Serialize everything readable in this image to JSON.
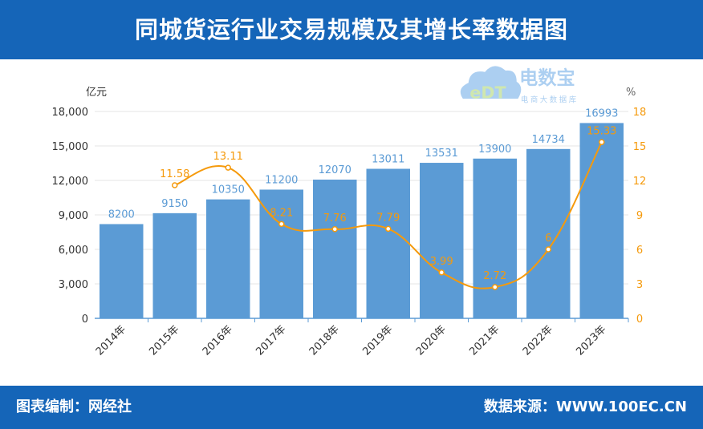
{
  "title": "同城货运行业交易规模及其增长率数据图",
  "footer": {
    "left": "图表编制：网经社",
    "right": "数据来源：WWW.100EC.CN"
  },
  "logo": {
    "name": "电数宝",
    "sub": "电商大数据库",
    "mark": "eDT"
  },
  "colors": {
    "header": "#1565b8",
    "bar": "#5b9bd5",
    "line": "#f59a0c",
    "bar_label": "#5b9bd5"
  },
  "chart_data": {
    "type": "bar+line",
    "categories": [
      "2014年",
      "2015年",
      "2016年",
      "2017年",
      "2018年",
      "2019年",
      "2020年",
      "2021年",
      "2022年",
      "2023年"
    ],
    "series": [
      {
        "type": "bar",
        "axis": "left",
        "values": [
          8200,
          9150,
          10350,
          11200,
          12070,
          13011,
          13531,
          13900,
          14734,
          16993
        ]
      },
      {
        "type": "line",
        "axis": "right",
        "smooth": true,
        "values": [
          null,
          11.58,
          13.11,
          8.21,
          7.76,
          7.79,
          3.99,
          2.72,
          6,
          15.33
        ]
      }
    ],
    "ylabel_left": "亿元",
    "ylabel_right": "%",
    "ylim_left": [
      0,
      18000
    ],
    "yticks_left": [
      "0",
      "3,000",
      "6,000",
      "9,000",
      "12,000",
      "15,000",
      "18,000"
    ],
    "ylim_right": [
      0,
      18
    ],
    "yticks_right": [
      "0",
      "3",
      "6",
      "9",
      "12",
      "15",
      "18"
    ],
    "grid": true
  }
}
